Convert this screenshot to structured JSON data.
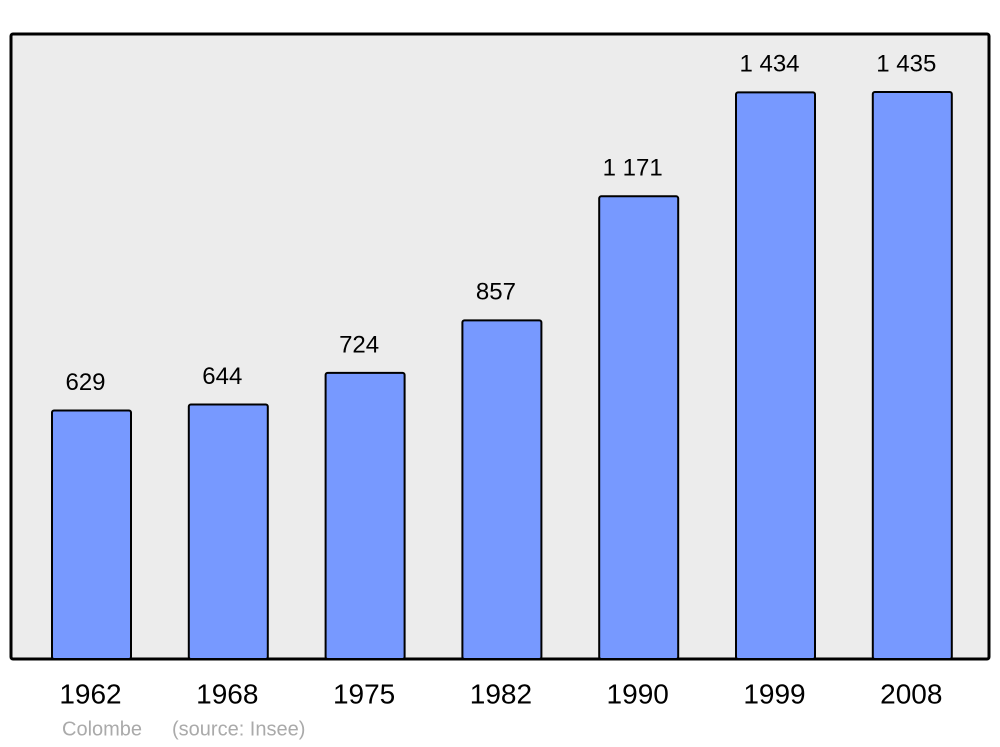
{
  "chart_data": {
    "type": "bar",
    "categories": [
      "1962",
      "1968",
      "1975",
      "1982",
      "1990",
      "1999",
      "2008"
    ],
    "values": [
      629,
      644,
      724,
      857,
      1171,
      1434,
      1435
    ],
    "value_labels": [
      "629",
      "644",
      "724",
      "857",
      "1 171",
      "1 434",
      "1 435"
    ],
    "color": "#7799ff",
    "caption": "Colombe",
    "source": "(source: Insee)"
  }
}
